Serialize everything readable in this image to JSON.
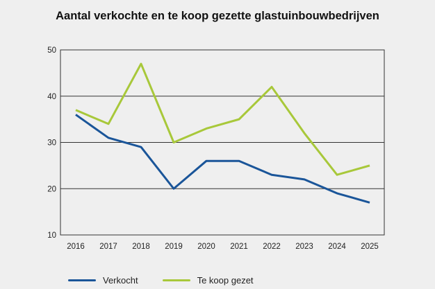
{
  "chart_data": {
    "type": "line",
    "title": "Aantal verkochte en te koop gezette glastuinbouwbedrijven",
    "xlabel": "",
    "ylabel": "",
    "x": [
      "2016",
      "2017",
      "2018",
      "2019",
      "2020",
      "2021",
      "2022",
      "2023",
      "2024",
      "2025"
    ],
    "ylim": [
      10,
      50
    ],
    "yticks": [
      10,
      20,
      30,
      40,
      50
    ],
    "grid": true,
    "legend_position": "bottom",
    "series": [
      {
        "name": "Verkocht",
        "color": "#1a5599",
        "values": [
          36,
          31,
          29,
          20,
          26,
          26,
          23,
          22,
          19,
          17
        ]
      },
      {
        "name": "Te koop gezet",
        "color": "#a8c83a",
        "values": [
          37,
          34,
          47,
          30,
          33,
          35,
          42,
          32,
          23,
          25
        ]
      }
    ]
  }
}
